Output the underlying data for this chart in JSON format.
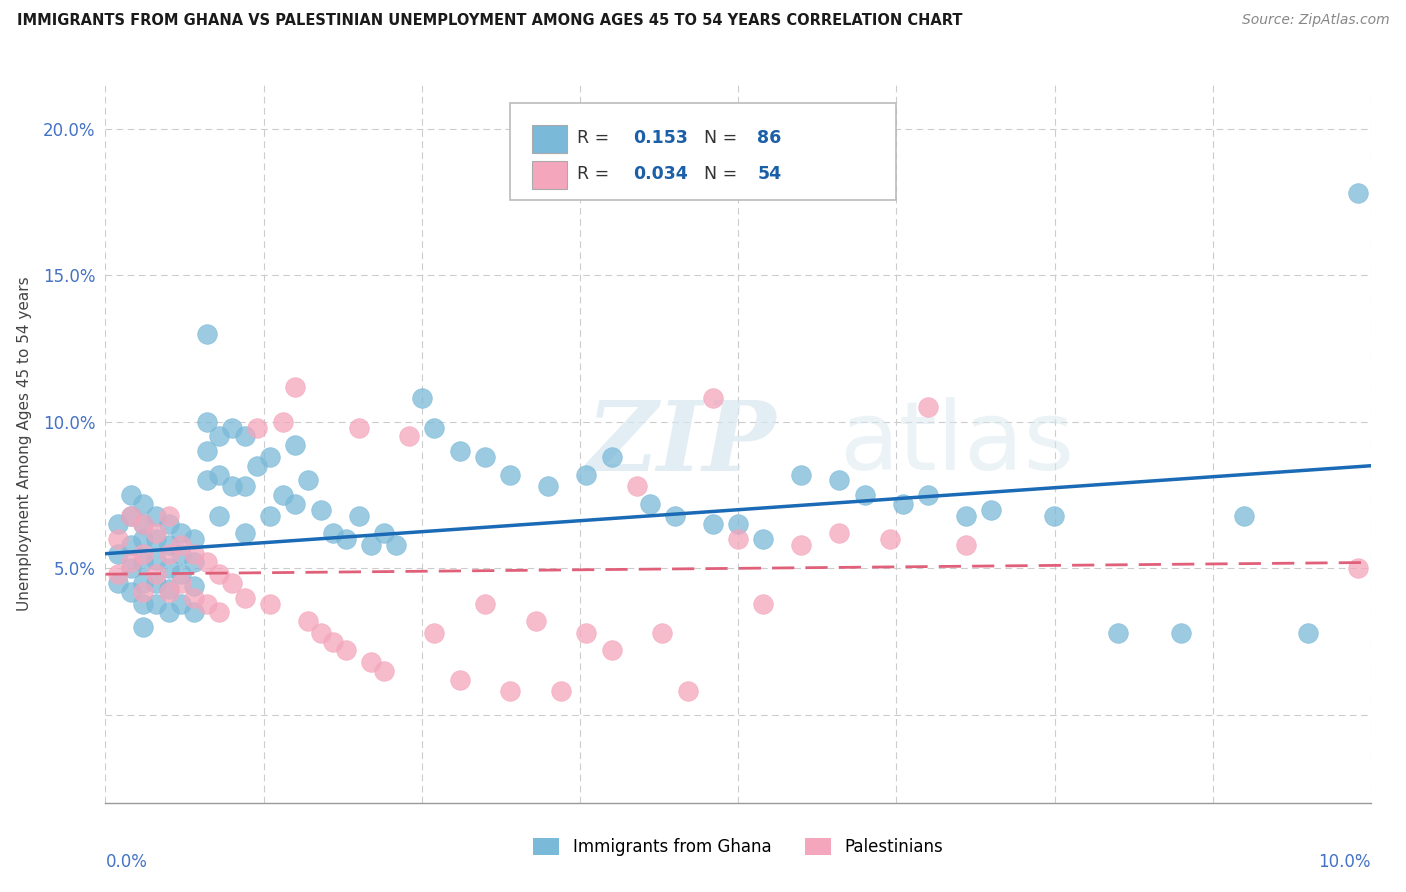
{
  "title": "IMMIGRANTS FROM GHANA VS PALESTINIAN UNEMPLOYMENT AMONG AGES 45 TO 54 YEARS CORRELATION CHART",
  "source": "Source: ZipAtlas.com",
  "ylabel": "Unemployment Among Ages 45 to 54 years",
  "xlim": [
    0.0,
    0.1
  ],
  "ylim": [
    -0.03,
    0.215
  ],
  "yticks": [
    0.0,
    0.05,
    0.1,
    0.15,
    0.2
  ],
  "ytick_labels": [
    "",
    "5.0%",
    "10.0%",
    "15.0%",
    "20.0%"
  ],
  "series1_color": "#7ab9d8",
  "series2_color": "#f4a6bc",
  "line1_color": "#1a6ab5",
  "line2_color": "#e0607a",
  "watermark_zip": "ZIP",
  "watermark_atlas": "atlas",
  "ghana_x": [
    0.001,
    0.001,
    0.001,
    0.002,
    0.002,
    0.002,
    0.002,
    0.002,
    0.003,
    0.003,
    0.003,
    0.003,
    0.003,
    0.003,
    0.003,
    0.004,
    0.004,
    0.004,
    0.004,
    0.004,
    0.005,
    0.005,
    0.005,
    0.005,
    0.005,
    0.006,
    0.006,
    0.006,
    0.006,
    0.007,
    0.007,
    0.007,
    0.007,
    0.008,
    0.008,
    0.008,
    0.008,
    0.009,
    0.009,
    0.009,
    0.01,
    0.01,
    0.011,
    0.011,
    0.011,
    0.012,
    0.013,
    0.013,
    0.014,
    0.015,
    0.015,
    0.016,
    0.017,
    0.018,
    0.019,
    0.02,
    0.021,
    0.022,
    0.023,
    0.025,
    0.026,
    0.028,
    0.03,
    0.032,
    0.035,
    0.038,
    0.04,
    0.043,
    0.045,
    0.048,
    0.05,
    0.052,
    0.055,
    0.058,
    0.06,
    0.063,
    0.065,
    0.068,
    0.07,
    0.075,
    0.08,
    0.085,
    0.09,
    0.095,
    0.099
  ],
  "ghana_y": [
    0.065,
    0.055,
    0.045,
    0.075,
    0.068,
    0.058,
    0.05,
    0.042,
    0.072,
    0.065,
    0.06,
    0.052,
    0.045,
    0.038,
    0.03,
    0.068,
    0.06,
    0.053,
    0.045,
    0.038,
    0.065,
    0.058,
    0.05,
    0.043,
    0.035,
    0.062,
    0.055,
    0.048,
    0.038,
    0.06,
    0.052,
    0.044,
    0.035,
    0.13,
    0.1,
    0.09,
    0.08,
    0.095,
    0.082,
    0.068,
    0.098,
    0.078,
    0.095,
    0.078,
    0.062,
    0.085,
    0.088,
    0.068,
    0.075,
    0.092,
    0.072,
    0.08,
    0.07,
    0.062,
    0.06,
    0.068,
    0.058,
    0.062,
    0.058,
    0.108,
    0.098,
    0.09,
    0.088,
    0.082,
    0.078,
    0.082,
    0.088,
    0.072,
    0.068,
    0.065,
    0.065,
    0.06,
    0.082,
    0.08,
    0.075,
    0.072,
    0.075,
    0.068,
    0.07,
    0.068,
    0.028,
    0.028,
    0.068,
    0.028,
    0.178
  ],
  "pal_x": [
    0.001,
    0.001,
    0.002,
    0.002,
    0.003,
    0.003,
    0.003,
    0.004,
    0.004,
    0.005,
    0.005,
    0.005,
    0.006,
    0.006,
    0.007,
    0.007,
    0.008,
    0.008,
    0.009,
    0.009,
    0.01,
    0.011,
    0.012,
    0.013,
    0.014,
    0.015,
    0.016,
    0.017,
    0.018,
    0.019,
    0.02,
    0.021,
    0.022,
    0.024,
    0.026,
    0.028,
    0.03,
    0.032,
    0.034,
    0.036,
    0.038,
    0.04,
    0.042,
    0.044,
    0.046,
    0.048,
    0.05,
    0.052,
    0.055,
    0.058,
    0.062,
    0.065,
    0.068,
    0.099
  ],
  "pal_y": [
    0.06,
    0.048,
    0.068,
    0.052,
    0.065,
    0.055,
    0.042,
    0.062,
    0.048,
    0.068,
    0.055,
    0.042,
    0.058,
    0.045,
    0.055,
    0.04,
    0.052,
    0.038,
    0.048,
    0.035,
    0.045,
    0.04,
    0.098,
    0.038,
    0.1,
    0.112,
    0.032,
    0.028,
    0.025,
    0.022,
    0.098,
    0.018,
    0.015,
    0.095,
    0.028,
    0.012,
    0.038,
    0.008,
    0.032,
    0.008,
    0.028,
    0.022,
    0.078,
    0.028,
    0.008,
    0.108,
    0.06,
    0.038,
    0.058,
    0.062,
    0.06,
    0.105,
    0.058,
    0.05
  ]
}
